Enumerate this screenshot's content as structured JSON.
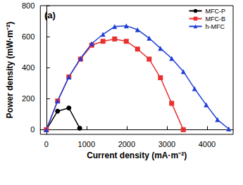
{
  "chart_data": {
    "type": "line",
    "title": "(a)",
    "x_label": "Current density (mA·m⁻²)",
    "y_label": "Power density (mW·m⁻²)",
    "xlim": [
      -150,
      4650
    ],
    "xticks": [
      0,
      1000,
      2000,
      3000,
      4000
    ],
    "ylim": [
      -30,
      800
    ],
    "yticks": [
      0,
      200,
      400,
      600,
      800
    ],
    "grid": false,
    "legend": "top-right",
    "series": [
      {
        "name": "MFC-P",
        "color": "#000000",
        "marker": "circle",
        "line_style": "solid",
        "x": [
          0,
          280,
          560,
          830
        ],
        "values": [
          0,
          120,
          140,
          10
        ]
      },
      {
        "name": "MFC-B",
        "color": "#e8312f",
        "marker": "square",
        "line_style": "solid",
        "x": [
          0,
          280,
          560,
          850,
          1130,
          1410,
          1700,
          1990,
          2270,
          2560,
          2840,
          3120,
          3410
        ],
        "values": [
          0,
          185,
          340,
          455,
          545,
          570,
          585,
          570,
          520,
          455,
          335,
          170,
          0
        ]
      },
      {
        "name": "h-MFC",
        "color": "#1f3fd6",
        "marker": "triangle",
        "line_style": "solid",
        "x": [
          0,
          280,
          560,
          850,
          1130,
          1410,
          1700,
          1990,
          2270,
          2560,
          2840,
          3120,
          3410,
          3690,
          3980,
          4260,
          4540
        ],
        "values": [
          0,
          185,
          340,
          460,
          555,
          615,
          665,
          670,
          645,
          590,
          525,
          460,
          375,
          265,
          160,
          65,
          5
        ]
      }
    ]
  }
}
